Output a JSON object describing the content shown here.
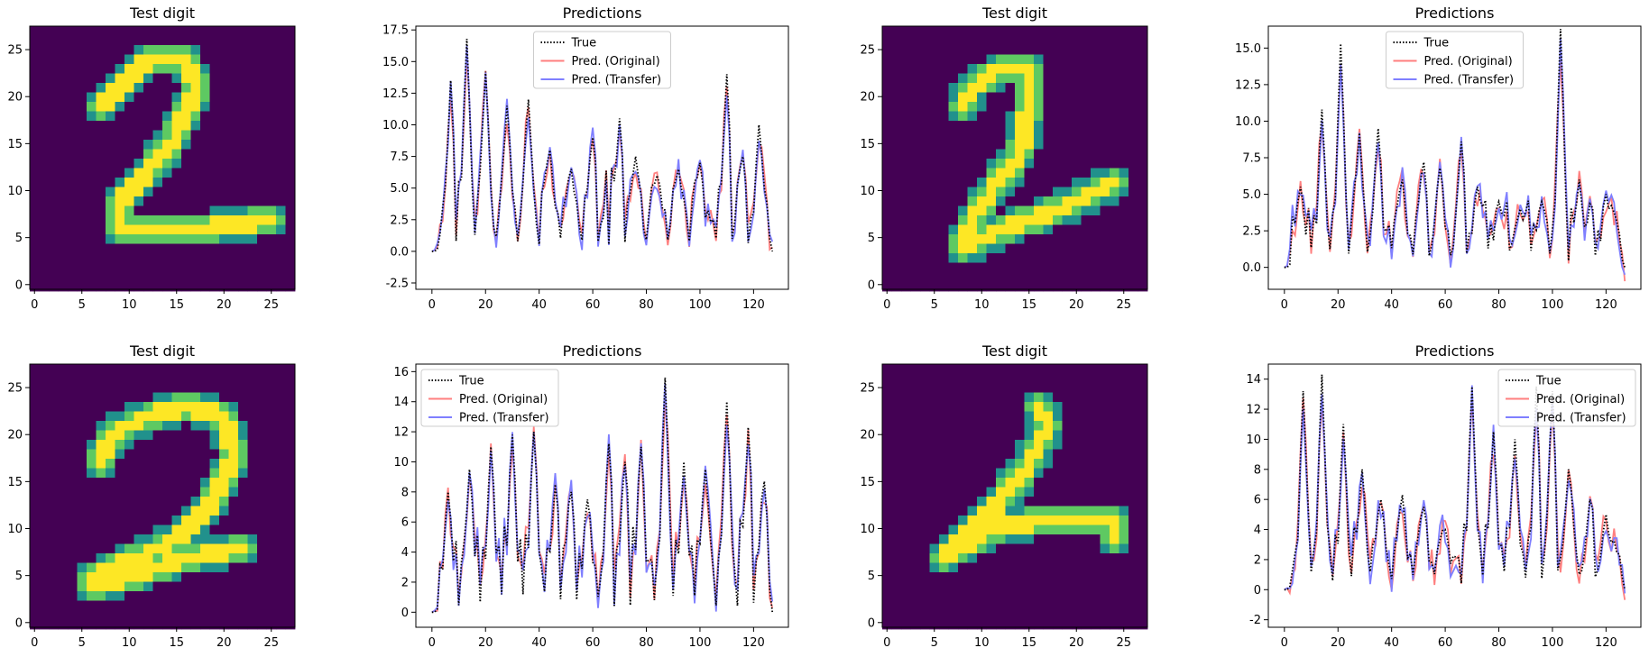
{
  "colors": {
    "viridis_dark": "#440154",
    "viridis_teal": "#21918c",
    "viridis_green": "#5ec962",
    "viridis_yellow": "#fde725",
    "true_line": "#000000",
    "original_line": "#ff7f7f",
    "transfer_line": "#7f7fff"
  },
  "chart_data": [
    {
      "type": "heatmap",
      "title": "Test digit",
      "xticks": [
        0,
        5,
        10,
        15,
        20,
        25
      ],
      "yticks": [
        0,
        5,
        10,
        15,
        20,
        25
      ],
      "xlim": [
        -0.5,
        27.5
      ],
      "ylim": [
        27.5,
        -0.5
      ],
      "strokes": [
        [
          [
            16,
            3
          ],
          [
            12,
            3
          ],
          [
            9,
            6
          ],
          [
            7,
            8
          ]
        ],
        [
          [
            16,
            3
          ],
          [
            17,
            6
          ],
          [
            15,
            11
          ],
          [
            12,
            15
          ],
          [
            9,
            18
          ],
          [
            9,
            21
          ]
        ],
        [
          [
            9,
            21
          ],
          [
            17,
            21
          ],
          [
            25,
            20
          ]
        ]
      ]
    },
    {
      "type": "line",
      "title": "Predictions",
      "xlim": [
        -6,
        133
      ],
      "ylim": [
        -3,
        17.8
      ],
      "xticks": [
        0,
        20,
        40,
        60,
        80,
        100,
        120
      ],
      "yticks": [
        -2.5,
        0.0,
        2.5,
        5.0,
        7.5,
        10.0,
        12.5,
        15.0,
        17.5
      ],
      "ytick_format": 1,
      "legend": "top-center",
      "seed": 11,
      "series": [
        {
          "name": "True",
          "style": "dotted",
          "peaks": [
            [
              7,
              13.5
            ],
            [
              13,
              16.8
            ],
            [
              20,
              14.2
            ],
            [
              28,
              11.5
            ],
            [
              36,
              12.0
            ],
            [
              44,
              8.0
            ],
            [
              52,
              6.5
            ],
            [
              60,
              9.0
            ],
            [
              66,
              8.0
            ],
            [
              70,
              10.5
            ],
            [
              76,
              7.5
            ],
            [
              84,
              6.0
            ],
            [
              92,
              6.5
            ],
            [
              100,
              7.0
            ],
            [
              110,
              14.0
            ],
            [
              116,
              7.5
            ],
            [
              122,
              10.0
            ]
          ],
          "base": 2.6,
          "end": 0
        },
        {
          "name": "Pred. (Original)",
          "style": "original"
        },
        {
          "name": "Pred. (Transfer)",
          "style": "transfer"
        }
      ]
    },
    {
      "type": "heatmap",
      "title": "Test digit",
      "xticks": [
        0,
        5,
        10,
        15,
        20,
        25
      ],
      "yticks": [
        0,
        5,
        10,
        15,
        20,
        25
      ],
      "xlim": [
        -0.5,
        27.5
      ],
      "ylim": [
        27.5,
        -0.5
      ],
      "strokes": [
        [
          [
            15,
            4
          ],
          [
            12,
            4
          ],
          [
            9,
            6
          ],
          [
            8,
            8
          ]
        ],
        [
          [
            15,
            4
          ],
          [
            15,
            8
          ],
          [
            14,
            13
          ],
          [
            11,
            17
          ],
          [
            9,
            20
          ],
          [
            8,
            23
          ]
        ],
        [
          [
            8,
            23
          ],
          [
            12,
            21
          ],
          [
            18,
            19
          ],
          [
            24,
            16
          ]
        ]
      ]
    },
    {
      "type": "line",
      "title": "Predictions",
      "xlim": [
        -6,
        133
      ],
      "ylim": [
        -1.5,
        16.5
      ],
      "xticks": [
        0,
        20,
        40,
        60,
        80,
        100,
        120
      ],
      "yticks": [
        0.0,
        2.5,
        5.0,
        7.5,
        10.0,
        12.5,
        15.0
      ],
      "ytick_format": 1,
      "legend": "top-center",
      "seed": 23,
      "series": [
        {
          "name": "True",
          "style": "dotted",
          "peaks": [
            [
              6,
              5.5
            ],
            [
              14,
              10.8
            ],
            [
              21,
              15.3
            ],
            [
              28,
              9.2
            ],
            [
              35,
              9.5
            ],
            [
              44,
              6.0
            ],
            [
              52,
              7.2
            ],
            [
              58,
              6.8
            ],
            [
              66,
              8.6
            ],
            [
              72,
              5.5
            ],
            [
              80,
              4.5
            ],
            [
              88,
              4.0
            ],
            [
              96,
              4.5
            ],
            [
              103,
              16.3
            ],
            [
              110,
              6.0
            ],
            [
              120,
              5.0
            ]
          ],
          "base": 2.0,
          "end": 0
        },
        {
          "name": "Pred. (Original)",
          "style": "original"
        },
        {
          "name": "Pred. (Transfer)",
          "style": "transfer"
        }
      ]
    },
    {
      "type": "heatmap",
      "title": "Test digit",
      "xticks": [
        0,
        5,
        10,
        15,
        20,
        25
      ],
      "yticks": [
        0,
        5,
        10,
        15,
        20,
        25
      ],
      "xlim": [
        -0.5,
        27.5
      ],
      "ylim": [
        27.5,
        -0.5
      ],
      "strokes": [
        [
          [
            7,
            10
          ],
          [
            8,
            7
          ],
          [
            12,
            5
          ],
          [
            16,
            4
          ],
          [
            20,
            5
          ]
        ],
        [
          [
            20,
            5
          ],
          [
            21,
            9
          ],
          [
            19,
            14
          ],
          [
            15,
            18
          ],
          [
            11,
            20
          ]
        ],
        [
          [
            11,
            20
          ],
          [
            6,
            22
          ],
          [
            6,
            23
          ],
          [
            10,
            22
          ],
          [
            16,
            20
          ],
          [
            22,
            19
          ]
        ]
      ]
    },
    {
      "type": "line",
      "title": "Predictions",
      "xlim": [
        -6,
        133
      ],
      "ylim": [
        -1,
        16.5
      ],
      "xticks": [
        0,
        20,
        40,
        60,
        80,
        100,
        120
      ],
      "yticks": [
        0,
        2,
        4,
        6,
        8,
        10,
        12,
        14,
        16
      ],
      "ytick_format": 0,
      "legend": "top-left",
      "seed": 37,
      "series": [
        {
          "name": "True",
          "style": "dotted",
          "peaks": [
            [
              6,
              8.0
            ],
            [
              14,
              9.5
            ],
            [
              22,
              11.0
            ],
            [
              30,
              11.8
            ],
            [
              38,
              12.0
            ],
            [
              46,
              8.5
            ],
            [
              52,
              8.0
            ],
            [
              58,
              7.5
            ],
            [
              66,
              11.2
            ],
            [
              72,
              10.0
            ],
            [
              78,
              11.0
            ],
            [
              87,
              15.6
            ],
            [
              94,
              10.0
            ],
            [
              102,
              9.5
            ],
            [
              110,
              14.0
            ],
            [
              118,
              12.3
            ],
            [
              124,
              8.7
            ]
          ],
          "base": 2.8,
          "end": 0
        },
        {
          "name": "Pred. (Original)",
          "style": "original"
        },
        {
          "name": "Pred. (Transfer)",
          "style": "transfer"
        }
      ]
    },
    {
      "type": "heatmap",
      "title": "Test digit",
      "xticks": [
        0,
        5,
        10,
        15,
        20,
        25
      ],
      "yticks": [
        0,
        5,
        10,
        15,
        20,
        25
      ],
      "xlim": [
        -0.5,
        27.5
      ],
      "ylim": [
        27.5,
        -0.5
      ],
      "strokes": [
        [
          [
            16,
            4
          ],
          [
            17,
            6
          ],
          [
            15,
            10
          ],
          [
            12,
            14
          ],
          [
            8,
            18
          ],
          [
            6,
            20
          ]
        ],
        [
          [
            6,
            20
          ],
          [
            11,
            17
          ],
          [
            16,
            16
          ],
          [
            24,
            16
          ],
          [
            24,
            18
          ]
        ]
      ]
    },
    {
      "type": "line",
      "title": "Predictions",
      "xlim": [
        -6,
        133
      ],
      "ylim": [
        -2.5,
        15
      ],
      "xticks": [
        0,
        20,
        40,
        60,
        80,
        100,
        120
      ],
      "yticks": [
        -2,
        0,
        2,
        4,
        6,
        8,
        10,
        12,
        14
      ],
      "ytick_format": 0,
      "legend": "top-right",
      "seed": 53,
      "series": [
        {
          "name": "True",
          "style": "dotted",
          "peaks": [
            [
              7,
              13.2
            ],
            [
              14,
              14.3
            ],
            [
              22,
              11.0
            ],
            [
              29,
              8.0
            ],
            [
              36,
              6.0
            ],
            [
              44,
              6.3
            ],
            [
              52,
              5.5
            ],
            [
              60,
              4.0
            ],
            [
              70,
              13.5
            ],
            [
              78,
              10.5
            ],
            [
              86,
              10.0
            ],
            [
              94,
              13.5
            ],
            [
              100,
              13.2
            ],
            [
              106,
              8.0
            ],
            [
              114,
              6.0
            ],
            [
              120,
              5.0
            ]
          ],
          "base": 1.8,
          "end": 0
        },
        {
          "name": "Pred. (Original)",
          "style": "original"
        },
        {
          "name": "Pred. (Transfer)",
          "style": "transfer"
        }
      ]
    }
  ]
}
